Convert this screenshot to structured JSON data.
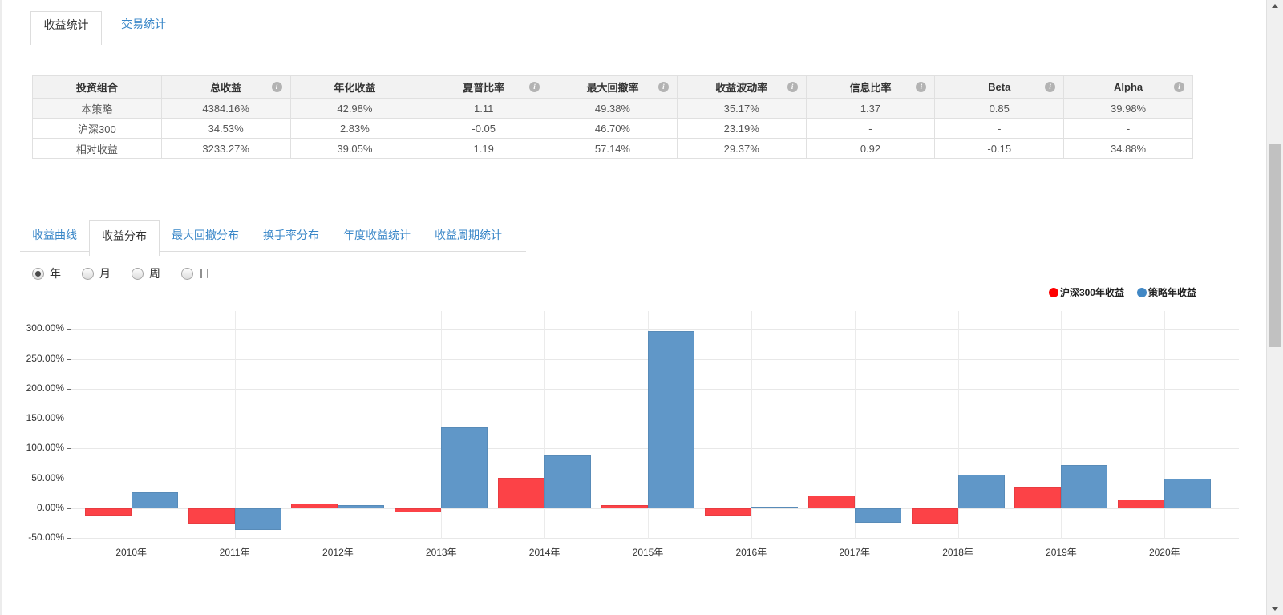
{
  "icons": {
    "info": "i"
  },
  "top_tabs": {
    "items": [
      {
        "label": "收益统计",
        "active": true
      },
      {
        "label": "交易统计",
        "active": false
      }
    ]
  },
  "stats_table": {
    "columns": [
      {
        "label": "投资组合",
        "info": false
      },
      {
        "label": "总收益",
        "info": true
      },
      {
        "label": "年化收益",
        "info": false
      },
      {
        "label": "夏普比率",
        "info": true
      },
      {
        "label": "最大回撤率",
        "info": true
      },
      {
        "label": "收益波动率",
        "info": true
      },
      {
        "label": "信息比率",
        "info": true
      },
      {
        "label": "Beta",
        "info": true
      },
      {
        "label": "Alpha",
        "info": true
      }
    ],
    "rows": [
      [
        "本策略",
        "4384.16%",
        "42.98%",
        "1.11",
        "49.38%",
        "35.17%",
        "1.37",
        "0.85",
        "39.98%"
      ],
      [
        "沪深300",
        "34.53%",
        "2.83%",
        "-0.05",
        "46.70%",
        "23.19%",
        "-",
        "-",
        "-"
      ],
      [
        "相对收益",
        "3233.27%",
        "39.05%",
        "1.19",
        "57.14%",
        "29.37%",
        "0.92",
        "-0.15",
        "34.88%"
      ]
    ]
  },
  "chart_tabs": {
    "items": [
      {
        "label": "收益曲线",
        "active": false
      },
      {
        "label": "收益分布",
        "active": true
      },
      {
        "label": "最大回撤分布",
        "active": false
      },
      {
        "label": "换手率分布",
        "active": false
      },
      {
        "label": "年度收益统计",
        "active": false
      },
      {
        "label": "收益周期统计",
        "active": false
      }
    ]
  },
  "period_radios": {
    "items": [
      {
        "label": "年",
        "selected": true
      },
      {
        "label": "月",
        "selected": false
      },
      {
        "label": "周",
        "selected": false
      },
      {
        "label": "日",
        "selected": false
      }
    ]
  },
  "chart_data": {
    "type": "bar",
    "categories": [
      "2010年",
      "2011年",
      "2012年",
      "2013年",
      "2014年",
      "2015年",
      "2016年",
      "2017年",
      "2018年",
      "2019年",
      "2020年"
    ],
    "series": [
      {
        "key": "csi300",
        "name": "沪深300年收益",
        "color": "#fc4247",
        "legend_color": "#fe0000",
        "values": [
          -12,
          -25,
          8,
          -7,
          51,
          5,
          -12,
          22,
          -25,
          36,
          15
        ]
      },
      {
        "key": "strategy",
        "name": "策略年收益",
        "color": "#6097c8",
        "legend_color": "#4288c5",
        "values": [
          27,
          -36,
          6,
          135,
          88,
          296,
          1.5,
          -24,
          56,
          73,
          49
        ]
      }
    ],
    "value_unit": "percent",
    "yticks": [
      "300.00%",
      "250.00%",
      "200.00%",
      "150.00%",
      "100.00%",
      "50.00%",
      "0.00%",
      "-50.00%"
    ],
    "ytick_values": [
      300,
      250,
      200,
      150,
      100,
      50,
      0,
      -50
    ],
    "ylim": [
      -67,
      330
    ],
    "grid": true,
    "legend_position": "top-right"
  }
}
